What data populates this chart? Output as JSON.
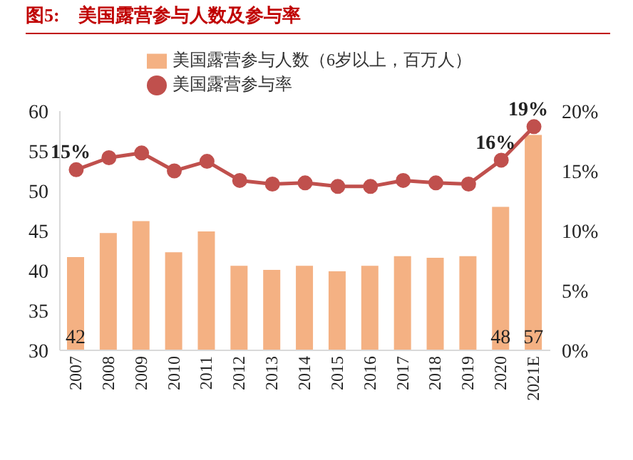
{
  "chart_data": {
    "type": "bar",
    "title": "图5:　美国露营参与人数及参与率",
    "categories": [
      "2007",
      "2008",
      "2009",
      "2010",
      "2011",
      "2012",
      "2013",
      "2014",
      "2015",
      "2016",
      "2017",
      "2018",
      "2019",
      "2020",
      "2021E"
    ],
    "series": [
      {
        "name": "美国露营参与人数（6岁以上，百万人）",
        "color": "#f4b183",
        "values": [
          41.7,
          44.7,
          46.2,
          42.3,
          44.9,
          40.6,
          40.1,
          40.6,
          39.9,
          40.6,
          41.8,
          41.6,
          41.8,
          48,
          57
        ],
        "value_labels": [
          "42",
          null,
          null,
          null,
          null,
          null,
          null,
          null,
          null,
          null,
          null,
          null,
          null,
          "48",
          "57"
        ]
      },
      {
        "name": "美国露营参与率",
        "type": "line",
        "axis": "y2",
        "color": "#c0504d",
        "values": [
          15.1,
          16.1,
          16.5,
          15.0,
          15.8,
          14.2,
          13.9,
          14.0,
          13.7,
          13.7,
          14.2,
          14.0,
          13.9,
          15.9,
          18.7
        ],
        "value_labels": [
          "15%",
          null,
          null,
          null,
          null,
          null,
          null,
          null,
          null,
          null,
          null,
          null,
          null,
          "16%",
          "19%"
        ]
      }
    ],
    "ylim": [
      30,
      60
    ],
    "yticks": [
      30,
      35,
      40,
      45,
      50,
      55,
      60
    ],
    "y2lim": [
      0,
      20
    ],
    "y2ticks": [
      {
        "value": 0,
        "label": "0%"
      },
      {
        "value": 5,
        "label": "5%"
      },
      {
        "value": 10,
        "label": "10%"
      },
      {
        "value": 15,
        "label": "15%"
      },
      {
        "value": 20,
        "label": "20%"
      }
    ],
    "legend": "top",
    "marker": "circle",
    "line_style": "solid",
    "grid": false
  }
}
